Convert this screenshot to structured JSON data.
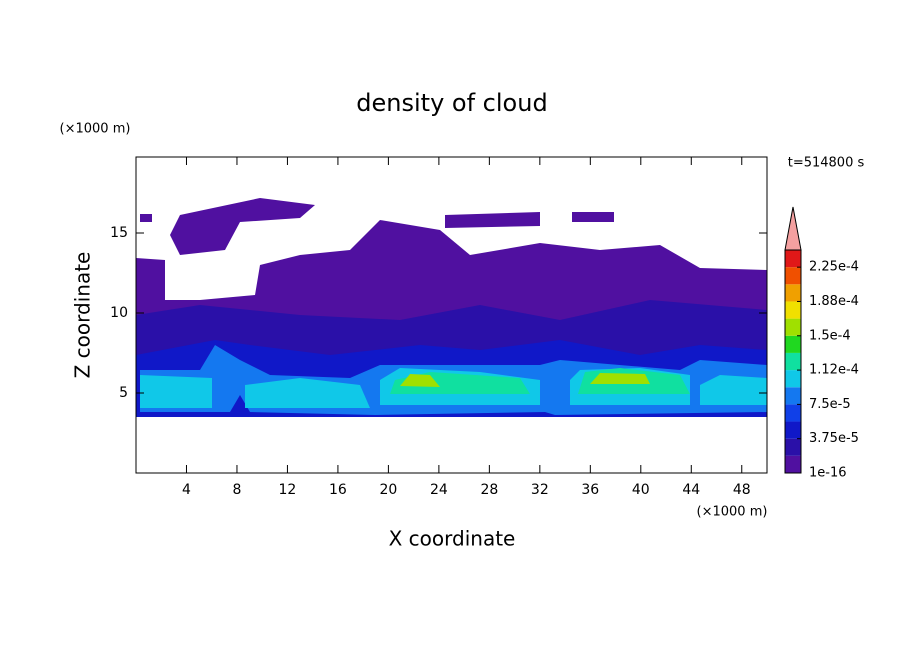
{
  "chart_data": {
    "type": "contour",
    "title": "density of cloud",
    "x_label": "X coordinate",
    "y_label": "Z coordinate",
    "x_unit": "(×1000 m)",
    "y_unit": "(×1000 m)",
    "time_label": "t=514800 s",
    "xlim": [
      0,
      50
    ],
    "ylim": [
      0,
      19.75
    ],
    "xticks": [
      4,
      8,
      12,
      16,
      20,
      24,
      28,
      32,
      36,
      40,
      44,
      48
    ],
    "yticks": [
      5,
      10,
      15
    ],
    "colorbar": {
      "lim": [
        0,
        0.00024375
      ],
      "ticks": [
        {
          "value": 1e-16,
          "label": "1e-16"
        },
        {
          "value": 3.75e-05,
          "label": "3.75e-5"
        },
        {
          "value": 7.5e-05,
          "label": "7.5e-5"
        },
        {
          "value": 0.0001125,
          "label": "1.12e-4"
        },
        {
          "value": 0.00015,
          "label": "1.5e-4"
        },
        {
          "value": 0.0001875,
          "label": "1.88e-4"
        },
        {
          "value": 0.000225,
          "label": "2.25e-4"
        }
      ],
      "colors": [
        "#5010a0",
        "#2a10a8",
        "#1018c8",
        "#1040e8",
        "#1478f0",
        "#10c8e8",
        "#10e0a0",
        "#20d820",
        "#a0e000",
        "#f0e000",
        "#f0a000",
        "#f05000",
        "#e01818"
      ],
      "over_color": "#f4a0a0"
    }
  }
}
